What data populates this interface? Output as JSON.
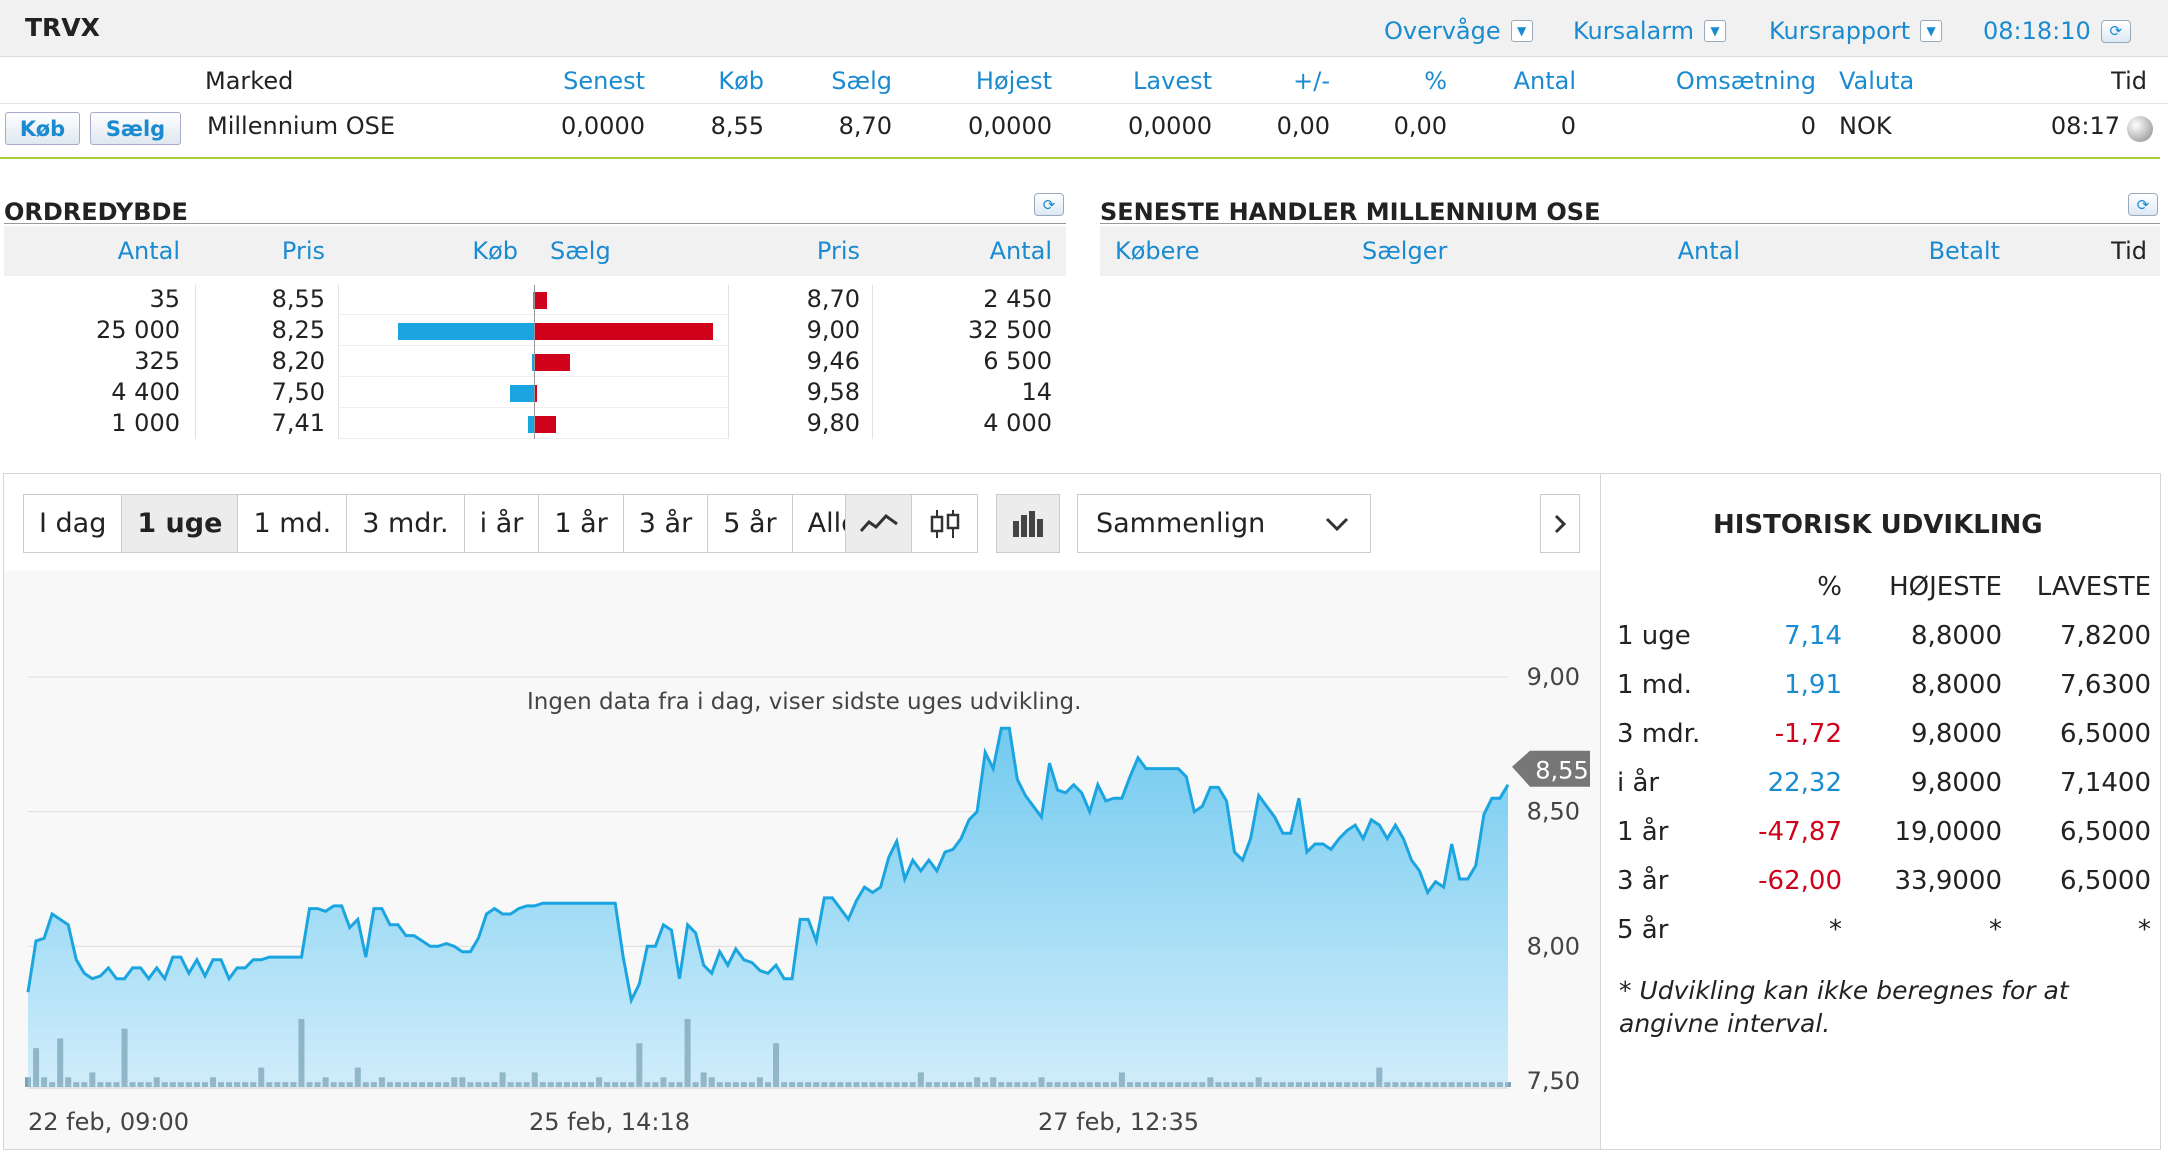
{
  "symbol": "TRVX",
  "toolbar": {
    "watch": "Overvåge",
    "alarm": "Kursalarm",
    "report": "Kursrapport",
    "time": "08:18:10"
  },
  "quote": {
    "headers": {
      "market": "Marked",
      "last": "Senest",
      "bid": "Køb",
      "ask": "Sælg",
      "high": "Højest",
      "low": "Lavest",
      "change": "+/-",
      "pct": "%",
      "volume": "Antal",
      "turnover": "Omsætning",
      "currency": "Valuta",
      "time": "Tid"
    },
    "buy_btn": "Køb",
    "sell_btn": "Sælg",
    "row": {
      "market": "Millennium OSE",
      "last": "0,0000",
      "bid": "8,55",
      "ask": "8,70",
      "high": "0,0000",
      "low": "0,0000",
      "change": "0,00",
      "pct": "0,00",
      "volume": "0",
      "turnover": "0",
      "currency": "NOK",
      "time": "08:17"
    }
  },
  "orderbook": {
    "title": "ORDREDYBDE",
    "headers": {
      "bid_qty": "Antal",
      "bid_price": "Pris",
      "bid": "Køb",
      "ask": "Sælg",
      "ask_price": "Pris",
      "ask_qty": "Antal"
    },
    "rows": [
      {
        "bid_qty": "35",
        "bid_price": "8,55",
        "ask_price": "8,70",
        "ask_qty": "2 450",
        "bid_n": 35,
        "ask_n": 2450
      },
      {
        "bid_qty": "25 000",
        "bid_price": "8,25",
        "ask_price": "9,00",
        "ask_qty": "32 500",
        "bid_n": 25000,
        "ask_n": 32500
      },
      {
        "bid_qty": "325",
        "bid_price": "8,20",
        "ask_price": "9,46",
        "ask_qty": "6 500",
        "bid_n": 325,
        "ask_n": 6500
      },
      {
        "bid_qty": "4 400",
        "bid_price": "7,50",
        "ask_price": "9,58",
        "ask_qty": "14",
        "bid_n": 4400,
        "ask_n": 14
      },
      {
        "bid_qty": "1 000",
        "bid_price": "7,41",
        "ask_price": "9,80",
        "ask_qty": "4 000",
        "bid_n": 1000,
        "ask_n": 4000
      }
    ],
    "colors": {
      "bid": "#1ba5e0",
      "ask": "#d0021b"
    }
  },
  "trades": {
    "title": "SENESTE HANDLER MILLENNIUM OSE",
    "headers": {
      "buyers": "Købere",
      "seller": "Sælger",
      "qty": "Antal",
      "paid": "Betalt",
      "time": "Tid"
    }
  },
  "chart_controls": {
    "ranges": [
      "I dag",
      "1 uge",
      "1 md.",
      "3 mdr.",
      "i år",
      "1 år",
      "3 år",
      "5 år",
      "Alle"
    ],
    "active": "1 uge",
    "compare": "Sammenlign"
  },
  "chart_data": {
    "type": "area",
    "annotation": "Ingen data fra i dag, viser sidste uges udvikling.",
    "x_ticks": [
      "22 feb, 09:00",
      "25 feb, 14:18",
      "27 feb, 12:35"
    ],
    "y_ticks": [
      "9,00",
      "8,50",
      "8,00",
      "7,50"
    ],
    "ylim": [
      7.45,
      9.1
    ],
    "last_label": "8,55",
    "prices": [
      7.83,
      8.02,
      8.03,
      8.12,
      8.1,
      8.08,
      7.95,
      7.9,
      7.88,
      7.89,
      7.92,
      7.88,
      7.88,
      7.92,
      7.92,
      7.88,
      7.92,
      7.88,
      7.96,
      7.96,
      7.9,
      7.95,
      7.89,
      7.95,
      7.95,
      7.88,
      7.92,
      7.92,
      7.95,
      7.95,
      7.96,
      7.96,
      7.96,
      7.96,
      7.96,
      8.14,
      8.14,
      8.13,
      8.15,
      8.15,
      8.07,
      8.1,
      7.96,
      8.14,
      8.14,
      8.08,
      8.08,
      8.04,
      8.04,
      8.02,
      8.0,
      8.0,
      8.01,
      8.0,
      7.98,
      7.98,
      8.03,
      8.12,
      8.14,
      8.12,
      8.12,
      8.14,
      8.15,
      8.15,
      8.16,
      8.16,
      8.16,
      8.16,
      8.16,
      8.16,
      8.16,
      8.16,
      8.16,
      8.16,
      7.96,
      7.8,
      7.86,
      8.0,
      8.0,
      8.08,
      8.06,
      7.88,
      8.08,
      8.05,
      7.93,
      7.9,
      7.98,
      7.93,
      7.99,
      7.95,
      7.94,
      7.91,
      7.9,
      7.93,
      7.88,
      7.88,
      8.1,
      8.1,
      8.02,
      8.18,
      8.18,
      8.14,
      8.1,
      8.17,
      8.22,
      8.2,
      8.22,
      8.33,
      8.39,
      8.25,
      8.32,
      8.28,
      8.32,
      8.28,
      8.35,
      8.36,
      8.4,
      8.47,
      8.5,
      8.72,
      8.66,
      8.81,
      8.81,
      8.62,
      8.56,
      8.52,
      8.48,
      8.68,
      8.58,
      8.57,
      8.6,
      8.57,
      8.5,
      8.6,
      8.54,
      8.55,
      8.55,
      8.63,
      8.7,
      8.66,
      8.66,
      8.66,
      8.66,
      8.66,
      8.63,
      8.5,
      8.52,
      8.59,
      8.59,
      8.54,
      8.35,
      8.32,
      8.4,
      8.56,
      8.52,
      8.48,
      8.42,
      8.42,
      8.55,
      8.35,
      8.38,
      8.38,
      8.36,
      8.4,
      8.43,
      8.45,
      8.4,
      8.47,
      8.45,
      8.4,
      8.45,
      8.4,
      8.32,
      8.28,
      8.2,
      8.24,
      8.22,
      8.38,
      8.25,
      8.25,
      8.3,
      8.49,
      8.55,
      8.55,
      8.6
    ],
    "volumes": [
      2,
      8,
      2,
      1,
      10,
      2,
      1,
      1,
      3,
      1,
      1,
      1,
      12,
      1,
      1,
      1,
      2,
      1,
      1,
      1,
      1,
      1,
      1,
      2,
      1,
      1,
      1,
      1,
      1,
      4,
      1,
      1,
      1,
      1,
      14,
      1,
      1,
      2,
      1,
      1,
      1,
      4,
      1,
      1,
      2,
      1,
      1,
      1,
      1,
      1,
      1,
      1,
      1,
      2,
      2,
      1,
      1,
      1,
      1,
      3,
      1,
      1,
      1,
      3,
      1,
      1,
      1,
      1,
      1,
      1,
      1,
      2,
      1,
      1,
      1,
      1,
      9,
      1,
      1,
      2,
      1,
      1,
      14,
      1,
      3,
      2,
      1,
      1,
      1,
      1,
      1,
      2,
      1,
      9,
      1,
      1,
      1,
      1,
      1,
      1,
      1,
      1,
      1,
      1,
      1,
      1,
      1,
      1,
      1,
      1,
      1,
      3,
      1,
      1,
      1,
      1,
      1,
      1,
      2,
      1,
      2,
      1,
      1,
      1,
      1,
      1,
      2,
      1,
      1,
      1,
      1,
      1,
      1,
      1,
      1,
      1,
      3,
      1,
      1,
      1,
      1,
      1,
      1,
      1,
      1,
      1,
      1,
      2,
      1,
      1,
      1,
      1,
      1,
      2,
      1,
      1,
      1,
      1,
      1,
      1,
      1,
      1,
      1,
      1,
      1,
      1,
      1,
      1,
      4,
      1,
      1,
      1,
      1,
      1,
      1,
      1,
      1,
      1,
      1,
      1,
      1,
      1,
      1,
      1,
      1,
      1,
      1,
      1,
      1,
      1,
      2,
      2,
      1,
      1,
      2,
      1
    ]
  },
  "history": {
    "title": "HISTORISK UDVIKLING",
    "headers": {
      "pct": "%",
      "high": "HØJESTE",
      "low": "LAVESTE"
    },
    "rows": [
      {
        "period": "1 uge",
        "pct": "7,14",
        "high": "8,8000",
        "low": "7,8200",
        "tone": "pos"
      },
      {
        "period": "1 md.",
        "pct": "1,91",
        "high": "8,8000",
        "low": "7,6300",
        "tone": "pos"
      },
      {
        "period": "3 mdr.",
        "pct": "-1,72",
        "high": "9,8000",
        "low": "6,5000",
        "tone": "neg"
      },
      {
        "period": "i år",
        "pct": "22,32",
        "high": "9,8000",
        "low": "7,1400",
        "tone": "pos"
      },
      {
        "period": "1 år",
        "pct": "-47,87",
        "high": "19,0000",
        "low": "6,5000",
        "tone": "neg"
      },
      {
        "period": "3 år",
        "pct": "-62,00",
        "high": "33,9000",
        "low": "6,5000",
        "tone": "neg"
      },
      {
        "period": "5 år",
        "pct": "*",
        "high": "*",
        "low": "*",
        "tone": "none"
      }
    ],
    "note": "* Udvikling kan ikke beregnes for at angivne interval."
  }
}
